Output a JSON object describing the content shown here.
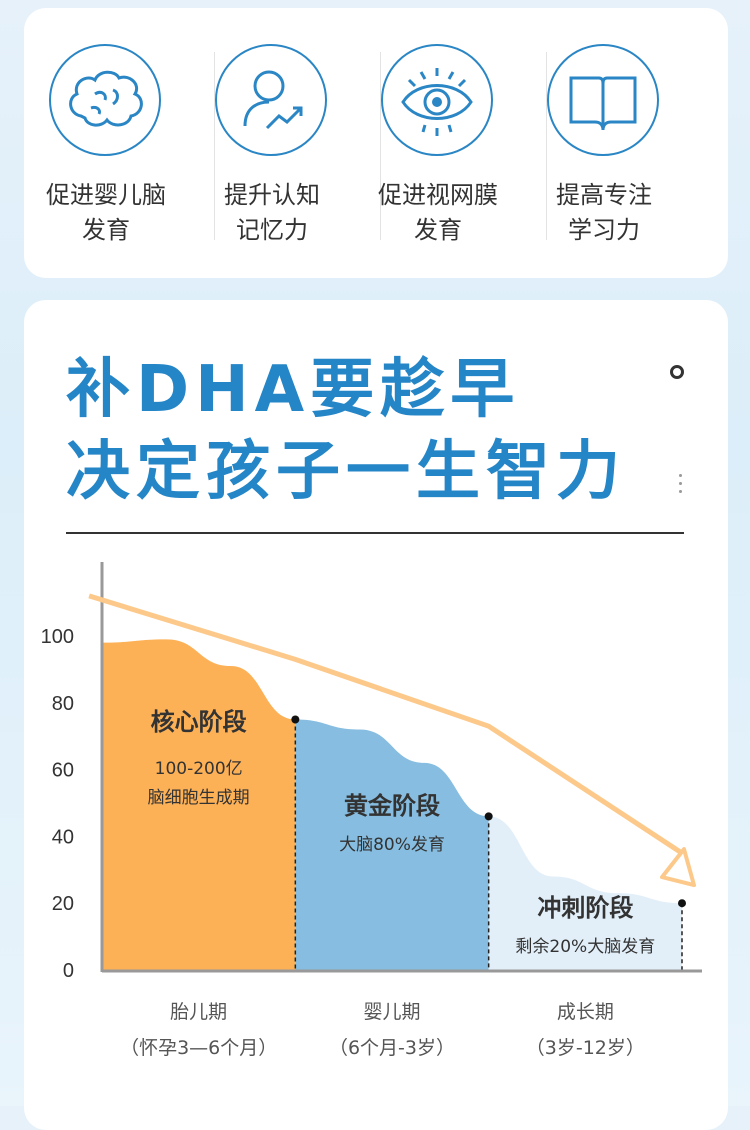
{
  "benefits": [
    {
      "icon": "brain-icon",
      "line1": "促进婴儿脑",
      "line2": "发育"
    },
    {
      "icon": "person-growth-icon",
      "line1": "提升认知",
      "line2": "记忆力"
    },
    {
      "icon": "eye-icon",
      "line1": "促进视网膜",
      "line2": "发育"
    },
    {
      "icon": "book-icon",
      "line1": "提高专注",
      "line2": "学习力"
    }
  ],
  "headline": {
    "line1": "补DHA要趁早",
    "line2": "决定孩子一生智力"
  },
  "colors": {
    "accent": "#2485c7",
    "orange": "#fdb157",
    "blue": "#86bde0",
    "light_blue": "#e2eff9",
    "arrow": "#fcc98a"
  },
  "chart_data": {
    "type": "area",
    "yticks": [
      "0",
      "20",
      "40",
      "60",
      "80",
      "100"
    ],
    "ylim": [
      0,
      120
    ],
    "xcategories": [
      {
        "name": "胎儿期",
        "range": "（怀孕3—6个月）"
      },
      {
        "name": "婴儿期",
        "range": "（6个月-3岁）"
      },
      {
        "name": "成长期",
        "range": "（3岁-12岁）"
      }
    ],
    "stages": [
      {
        "title": "核心阶段",
        "desc1": "100-200亿",
        "desc2": "脑细胞生成期"
      },
      {
        "title": "黄金阶段",
        "desc1": "大脑80%发育"
      },
      {
        "title": "冲刺阶段",
        "desc1": "剩余20%大脑发育"
      }
    ],
    "curve": [
      {
        "x": 0,
        "y": 98
      },
      {
        "x": 0.5,
        "y": 99
      },
      {
        "x": 1,
        "y": 91
      },
      {
        "x": 1.5,
        "y": 75
      },
      {
        "x": 2,
        "y": 72
      },
      {
        "x": 2.5,
        "y": 62
      },
      {
        "x": 3,
        "y": 46
      },
      {
        "x": 3.5,
        "y": 28
      },
      {
        "x": 4,
        "y": 23
      },
      {
        "x": 4.5,
        "y": 20
      }
    ],
    "boundary_points": [
      {
        "x": 1.5,
        "y": 75
      },
      {
        "x": 3,
        "y": 46
      },
      {
        "x": 4.5,
        "y": 20
      }
    ],
    "trend_arrow": [
      {
        "x": -0.1,
        "y": 112
      },
      {
        "x": 1.5,
        "y": 93
      },
      {
        "x": 3,
        "y": 73
      },
      {
        "x": 4.5,
        "y": 35
      }
    ]
  }
}
